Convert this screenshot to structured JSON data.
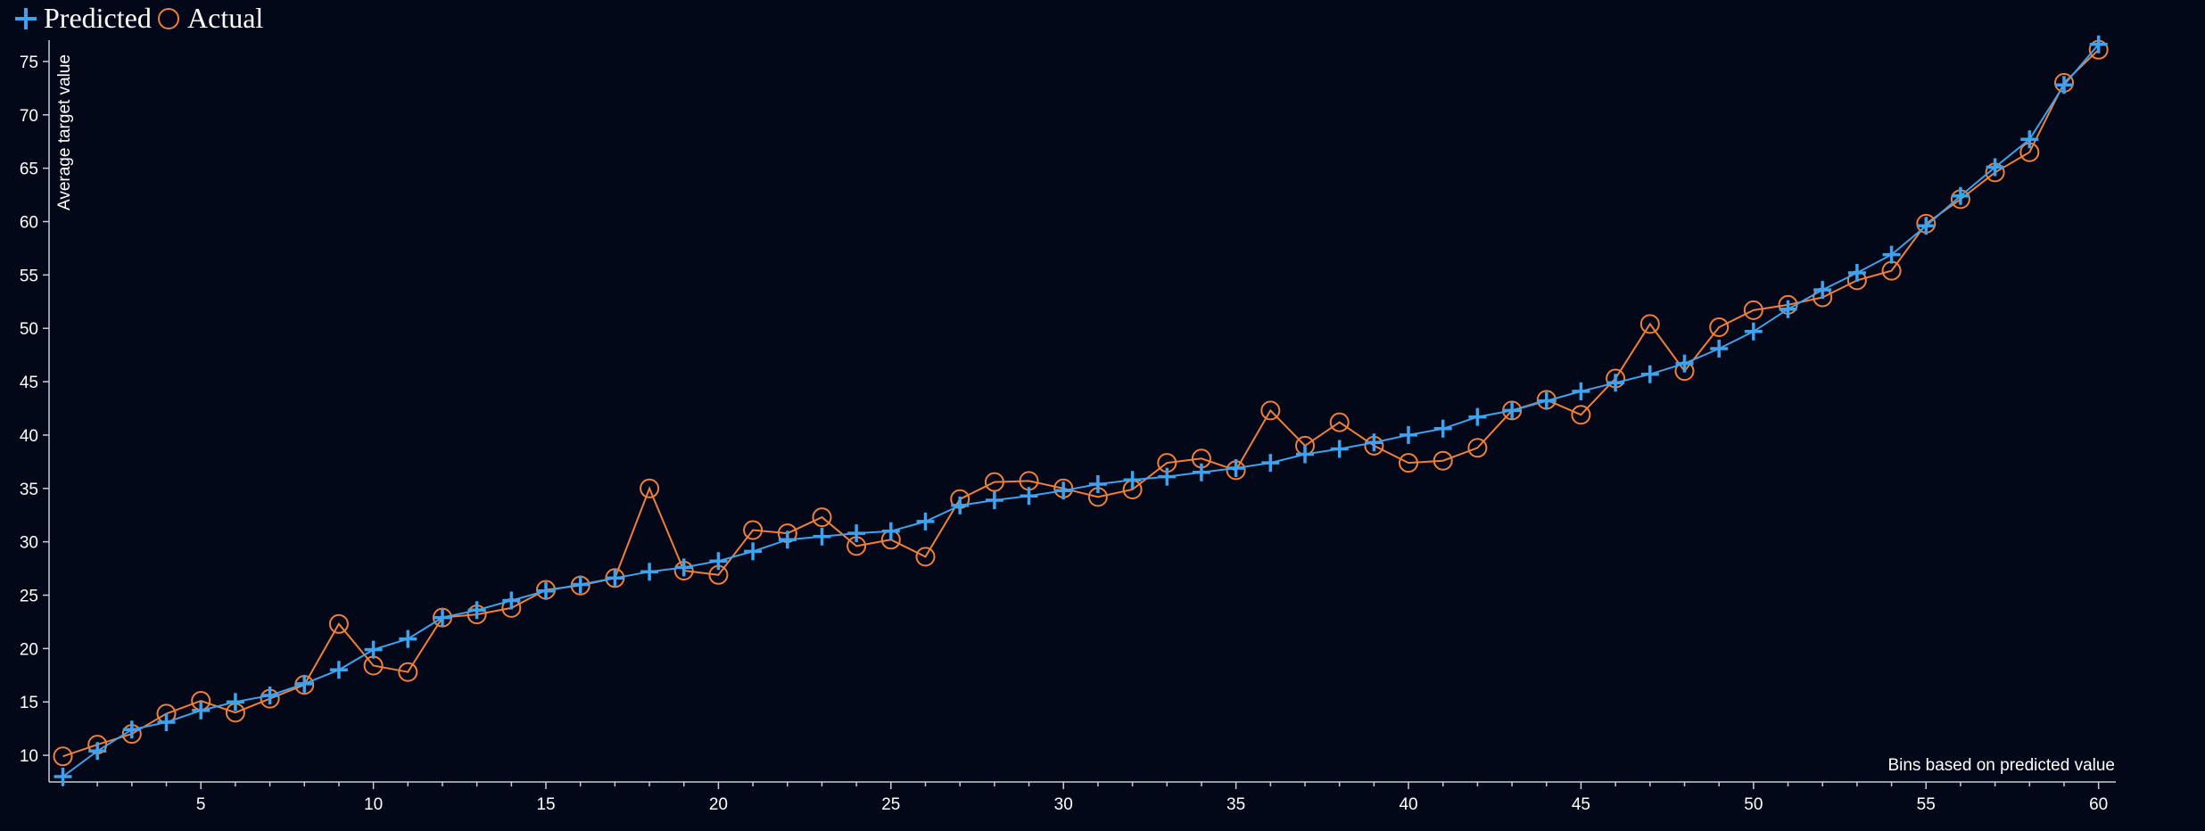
{
  "chart_data": {
    "type": "line",
    "title": "",
    "xlabel": "Bins based on predicted value",
    "ylabel": "Average target value",
    "xlim": [
      0.6,
      60.5
    ],
    "ylim": [
      7.5,
      77
    ],
    "x_ticks": [
      5,
      10,
      15,
      20,
      25,
      30,
      35,
      40,
      45,
      50,
      55,
      60
    ],
    "y_ticks": [
      10,
      15,
      20,
      25,
      30,
      35,
      40,
      45,
      50,
      55,
      60,
      65,
      70,
      75
    ],
    "x_minor_step": 1,
    "grid": false,
    "legend": "top-left",
    "colors": {
      "background": "#020818",
      "predicted": "#3ea2ee",
      "actual": "#f07f3a",
      "axis": "#c9ccd3",
      "text": "#ffffff"
    },
    "x": [
      1,
      2,
      3,
      4,
      5,
      6,
      7,
      8,
      9,
      10,
      11,
      12,
      13,
      14,
      15,
      16,
      17,
      18,
      19,
      20,
      21,
      22,
      23,
      24,
      25,
      26,
      27,
      28,
      29,
      30,
      31,
      32,
      33,
      34,
      35,
      36,
      37,
      38,
      39,
      40,
      41,
      42,
      43,
      44,
      45,
      46,
      47,
      48,
      49,
      50,
      51,
      52,
      53,
      54,
      55,
      56,
      57,
      58,
      59,
      60
    ],
    "series": [
      {
        "name": "Predicted",
        "marker": "plus",
        "values": [
          8.0,
          10.4,
          12.4,
          13.1,
          14.2,
          15.0,
          15.6,
          16.7,
          18.0,
          19.9,
          20.9,
          22.9,
          23.6,
          24.5,
          25.4,
          26.0,
          26.6,
          27.2,
          27.6,
          28.2,
          29.1,
          30.2,
          30.5,
          30.8,
          31.0,
          31.9,
          33.4,
          33.9,
          34.3,
          34.8,
          35.4,
          35.8,
          36.1,
          36.5,
          36.9,
          37.4,
          38.2,
          38.7,
          39.3,
          40.0,
          40.6,
          41.7,
          42.3,
          43.2,
          44.1,
          44.9,
          45.7,
          46.7,
          48.1,
          49.7,
          51.8,
          53.6,
          55.2,
          56.9,
          59.6,
          62.4,
          65.1,
          67.7,
          72.8,
          76.6
        ]
      },
      {
        "name": "Actual",
        "marker": "circle",
        "values": [
          9.9,
          11.0,
          12.0,
          13.9,
          15.1,
          14.0,
          15.3,
          16.6,
          22.3,
          18.4,
          17.8,
          22.9,
          23.2,
          23.8,
          25.5,
          25.9,
          26.6,
          35.0,
          27.3,
          26.9,
          31.1,
          30.8,
          32.3,
          29.6,
          30.2,
          28.6,
          34.0,
          35.6,
          35.7,
          35.0,
          34.2,
          34.9,
          37.4,
          37.8,
          36.7,
          42.3,
          39.0,
          41.2,
          39.0,
          37.4,
          37.6,
          38.8,
          42.3,
          43.3,
          41.9,
          45.3,
          50.4,
          46.0,
          50.1,
          51.7,
          52.2,
          52.9,
          54.5,
          55.4,
          59.8,
          62.1,
          64.6,
          66.5,
          73.0,
          76.1
        ]
      }
    ]
  }
}
